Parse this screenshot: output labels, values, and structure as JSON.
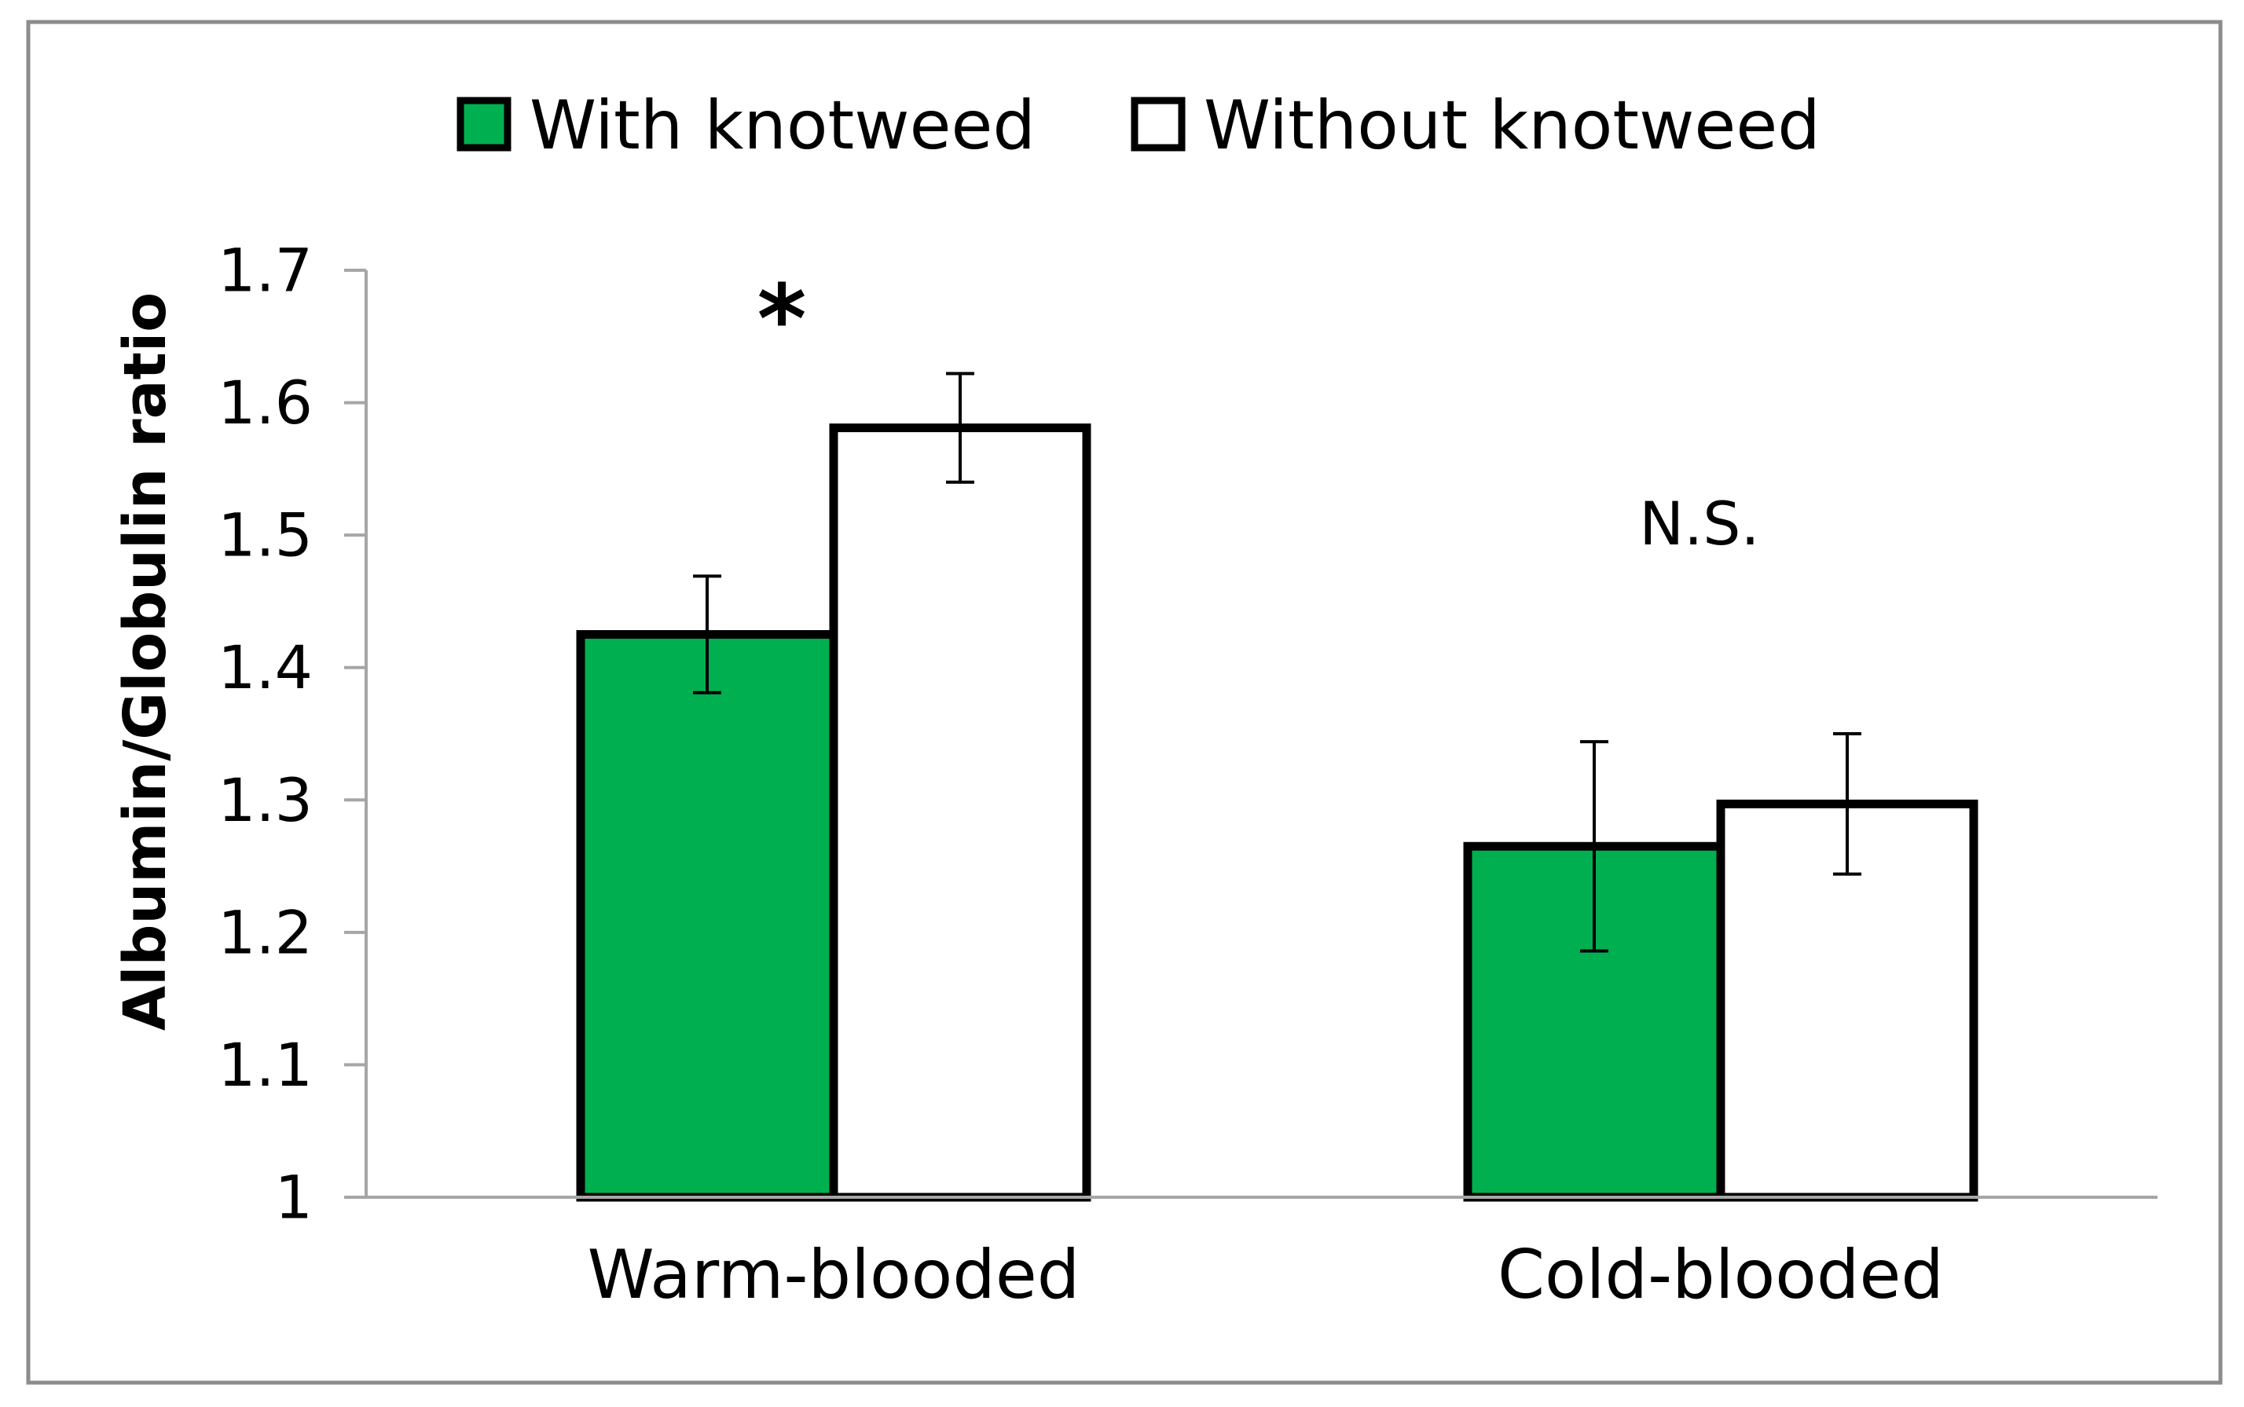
{
  "chart_data": {
    "type": "bar",
    "title": "",
    "xlabel": "",
    "ylabel": "Albumin/Globulin ratio",
    "categories": [
      "Warm-blooded",
      "Cold-blooded"
    ],
    "series": [
      {
        "name": "With knotweed",
        "color": "#00B050",
        "values": [
          1.425,
          1.265
        ],
        "errors": [
          0.044,
          0.079
        ]
      },
      {
        "name": "Without knotweed",
        "color": "#FFFFFF",
        "values": [
          1.581,
          1.297
        ],
        "errors": [
          0.041,
          0.053
        ]
      }
    ],
    "ylim": [
      1.0,
      1.7
    ],
    "yticks": [
      1,
      1.1,
      1.2,
      1.3,
      1.4,
      1.5,
      1.6,
      1.7
    ],
    "ytick_labels": [
      "1",
      "1.1",
      "1.2",
      "1.3",
      "1.4",
      "1.5",
      "1.6",
      "1.7"
    ],
    "legend_position": "top",
    "grid": false,
    "annotations": [
      {
        "category": "Warm-blooded",
        "text": "*"
      },
      {
        "category": "Cold-blooded",
        "text": "N.S."
      }
    ],
    "colors": {
      "axis": "#A6A6A6",
      "frame": "#8C8C8C",
      "bar_edge": "#000000"
    }
  }
}
